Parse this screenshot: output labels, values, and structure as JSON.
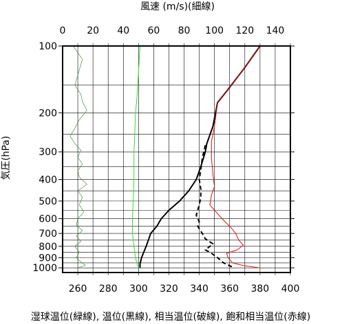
{
  "chart_data": {
    "type": "line",
    "title": "風速 (m/s)(細線)",
    "ylabel": "気圧(hPa)",
    "xlabel": "湿球温位(緑線), 温位(黒線), 相当温位(破線), 飽和相当温位(赤線)",
    "y_scale": "log",
    "ylim": [
      1050,
      100
    ],
    "y_ticks": [
      100,
      200,
      300,
      400,
      500,
      600,
      700,
      800,
      900,
      1000
    ],
    "y_tick_labels": [
      "100",
      "200",
      "300",
      "400",
      "500",
      "600",
      "700",
      "800",
      "900",
      "1000"
    ],
    "y_gridlines": [
      100,
      150,
      200,
      250,
      300,
      350,
      400,
      450,
      500,
      550,
      600,
      650,
      700,
      750,
      800,
      850,
      900,
      950,
      1000
    ],
    "x_bottom_lim": [
      250,
      400
    ],
    "x_bottom_ticks": [
      260,
      280,
      300,
      320,
      340,
      360,
      380,
      400
    ],
    "x_bottom_tick_labels": [
      "260",
      "280",
      "300",
      "320",
      "340",
      "360",
      "380",
      "400"
    ],
    "x_top_lim": [
      0,
      150
    ],
    "x_top_ticks": [
      0,
      20,
      40,
      60,
      80,
      100,
      120,
      140
    ],
    "x_top_tick_labels": [
      "0",
      "20",
      "40",
      "60",
      "80",
      "100",
      "120",
      "140"
    ],
    "x_gridlines": [
      260,
      270,
      280,
      290,
      300,
      310,
      320,
      330,
      340,
      350,
      360,
      370,
      380,
      390,
      400
    ],
    "grid": true,
    "series": [
      {
        "name": "風速",
        "axis": "top",
        "color": "#4a8a4a",
        "style": "thin",
        "points": [
          [
            7,
            100
          ],
          [
            13,
            115
          ],
          [
            10,
            135
          ],
          [
            8,
            150
          ],
          [
            12,
            165
          ],
          [
            13,
            178
          ],
          [
            16,
            195
          ],
          [
            11,
            215
          ],
          [
            8,
            235
          ],
          [
            5,
            255
          ],
          [
            8,
            275
          ],
          [
            12,
            295
          ],
          [
            10,
            318
          ],
          [
            13,
            340
          ],
          [
            10,
            365
          ],
          [
            11,
            390
          ],
          [
            16,
            420
          ],
          [
            10,
            450
          ],
          [
            13,
            480
          ],
          [
            11,
            520
          ],
          [
            14,
            560
          ],
          [
            10,
            600
          ],
          [
            9,
            640
          ],
          [
            13,
            680
          ],
          [
            9,
            720
          ],
          [
            12,
            760
          ],
          [
            8,
            800
          ],
          [
            11,
            850
          ],
          [
            9,
            900
          ],
          [
            12,
            940
          ],
          [
            15,
            975
          ],
          [
            10,
            1000
          ]
        ]
      },
      {
        "name": "湿球温位",
        "axis": "bottom",
        "color": "#33dd33",
        "style": "solid",
        "points": [
          [
            301,
            100
          ],
          [
            300,
            130
          ],
          [
            299,
            170
          ],
          [
            298,
            200
          ],
          [
            297.5,
            250
          ],
          [
            297,
            300
          ],
          [
            297,
            400
          ],
          [
            296.5,
            500
          ],
          [
            296,
            600
          ],
          [
            296,
            700
          ],
          [
            297,
            800
          ],
          [
            298,
            900
          ],
          [
            299,
            960
          ],
          [
            300,
            1000
          ]
        ]
      },
      {
        "name": "温位",
        "axis": "bottom",
        "color": "#000000",
        "style": "solid",
        "points": [
          [
            380,
            100
          ],
          [
            370,
            125
          ],
          [
            358,
            160
          ],
          [
            352,
            180
          ],
          [
            349,
            230
          ],
          [
            345,
            275
          ],
          [
            344,
            300
          ],
          [
            341,
            350
          ],
          [
            338,
            400
          ],
          [
            333,
            450
          ],
          [
            327,
            500
          ],
          [
            320,
            550
          ],
          [
            315,
            600
          ],
          [
            312,
            650
          ],
          [
            308,
            700
          ],
          [
            305,
            800
          ],
          [
            302,
            900
          ],
          [
            301,
            960
          ],
          [
            301,
            1000
          ]
        ]
      },
      {
        "name": "相当温位",
        "axis": "bottom",
        "color": "#000000",
        "style": "dashed",
        "points": [
          [
            344,
            280
          ],
          [
            342,
            320
          ],
          [
            341,
            360
          ],
          [
            340,
            400
          ],
          [
            341,
            440
          ],
          [
            341,
            480
          ],
          [
            340,
            520
          ],
          [
            338,
            580
          ],
          [
            340,
            620
          ],
          [
            339,
            650
          ],
          [
            342,
            700
          ],
          [
            344,
            740
          ],
          [
            349,
            780
          ],
          [
            344,
            830
          ],
          [
            348,
            860
          ],
          [
            352,
            900
          ],
          [
            356,
            950
          ],
          [
            363,
            1000
          ]
        ]
      },
      {
        "name": "飽和相当温位",
        "axis": "bottom",
        "color": "#dd1111",
        "style": "solid",
        "points": [
          [
            380,
            100
          ],
          [
            370,
            125
          ],
          [
            358,
            160
          ],
          [
            352,
            180
          ],
          [
            350,
            230
          ],
          [
            348,
            270
          ],
          [
            348,
            320
          ],
          [
            349,
            380
          ],
          [
            350,
            430
          ],
          [
            348,
            470
          ],
          [
            347,
            520
          ],
          [
            352,
            570
          ],
          [
            357,
            620
          ],
          [
            361,
            660
          ],
          [
            364,
            700
          ],
          [
            366,
            750
          ],
          [
            369,
            790
          ],
          [
            365,
            830
          ],
          [
            358,
            860
          ],
          [
            359,
            900
          ],
          [
            362,
            950
          ],
          [
            370,
            980
          ],
          [
            380,
            1000
          ]
        ]
      }
    ]
  }
}
